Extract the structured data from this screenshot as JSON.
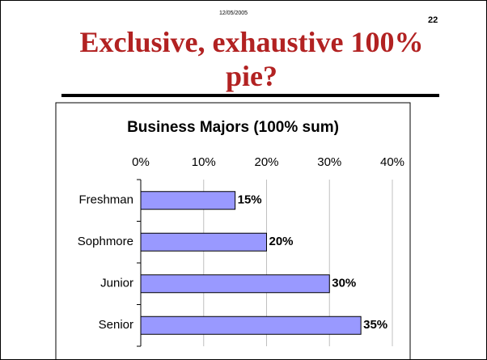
{
  "slide": {
    "date": "12/05/2005",
    "page_number": "22",
    "title": "Exclusive, exhaustive 100% pie?"
  },
  "chart_data": {
    "type": "bar",
    "orientation": "horizontal",
    "title": "Business Majors (100% sum)",
    "categories": [
      "Freshman",
      "Sophmore",
      "Junior",
      "Senior"
    ],
    "values": [
      15,
      20,
      30,
      35
    ],
    "value_labels": [
      "15%",
      "20%",
      "30%",
      "35%"
    ],
    "color": "#9999ff",
    "xlim": [
      0,
      40
    ],
    "xticks": [
      {
        "value": 0,
        "label": "0%"
      },
      {
        "value": 10,
        "label": "10%"
      },
      {
        "value": 20,
        "label": "20%"
      },
      {
        "value": 30,
        "label": "30%"
      },
      {
        "value": 40,
        "label": "40%"
      }
    ],
    "grid": true
  }
}
